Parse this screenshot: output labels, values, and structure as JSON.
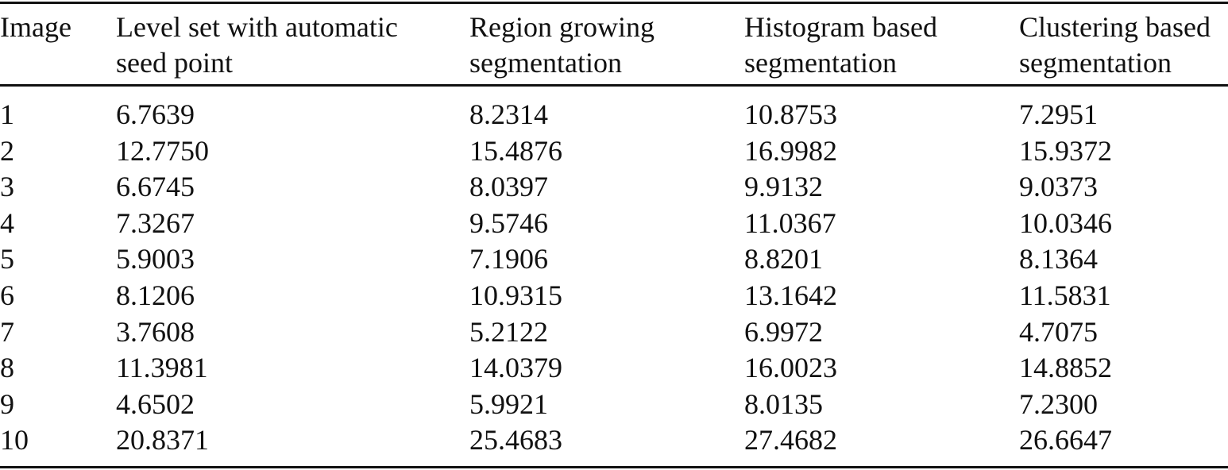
{
  "table": {
    "headers": [
      [
        "Image"
      ],
      [
        "Level set with automatic",
        "seed point"
      ],
      [
        "Region growing",
        "segmentation"
      ],
      [
        "Histogram based",
        "segmentation"
      ],
      [
        "Clustering based",
        "segmentation"
      ]
    ],
    "rows": [
      [
        "1",
        "6.7639",
        "8.2314",
        "10.8753",
        "7.2951"
      ],
      [
        "2",
        "12.7750",
        "15.4876",
        "16.9982",
        "15.9372"
      ],
      [
        "3",
        "6.6745",
        "8.0397",
        "9.9132",
        "9.0373"
      ],
      [
        "4",
        "7.3267",
        "9.5746",
        "11.0367",
        "10.0346"
      ],
      [
        "5",
        "5.9003",
        "7.1906",
        "8.8201",
        "8.1364"
      ],
      [
        "6",
        "8.1206",
        "10.9315",
        "13.1642",
        "11.5831"
      ],
      [
        "7",
        "3.7608",
        "5.2122",
        "6.9972",
        "4.7075"
      ],
      [
        "8",
        "11.3981",
        "14.0379",
        "16.0023",
        "14.8852"
      ],
      [
        "9",
        "4.6502",
        "5.9921",
        "8.0135",
        "7.2300"
      ],
      [
        "10",
        "20.8371",
        "25.4683",
        "27.4682",
        "26.6647"
      ]
    ]
  }
}
